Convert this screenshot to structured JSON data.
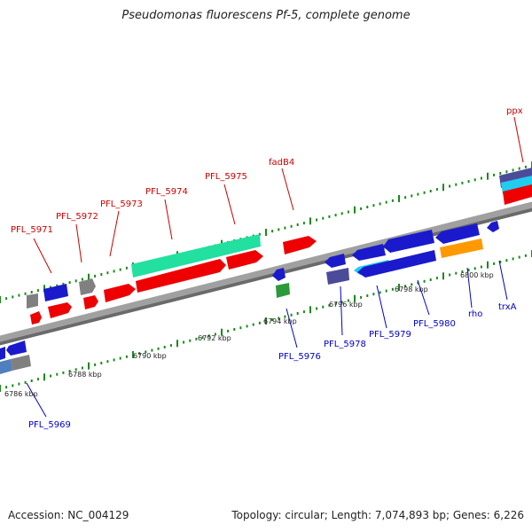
{
  "title": "Pseudomonas fluorescens Pf-5, complete genome",
  "footer": {
    "accession": "Accession: NC_004129",
    "topology": "Topology: circular; Length: 7,074,893 bp; Genes: 6,226"
  },
  "colors": {
    "forward_label": "#cc0000",
    "reverse_label": "#0000cc",
    "tick": "#1a8a1a",
    "backbone": "#909090"
  },
  "scale_labels": [
    "6786 kbp",
    "6788 kbp",
    "6790 kbp",
    "6792 kbp",
    "6794 kbp",
    "6796 kbp",
    "6798 kbp",
    "6800 kbp"
  ],
  "forward_gene_labels": [
    "PFL_5971",
    "PFL_5972",
    "PFL_5973",
    "PFL_5974",
    "PFL_5975",
    "fadB4",
    "ppx"
  ],
  "reverse_gene_labels": [
    "PFL_5969",
    "PFL_5976",
    "PFL_5978",
    "PFL_5979",
    "PFL_5980",
    "rho",
    "trxA"
  ]
}
